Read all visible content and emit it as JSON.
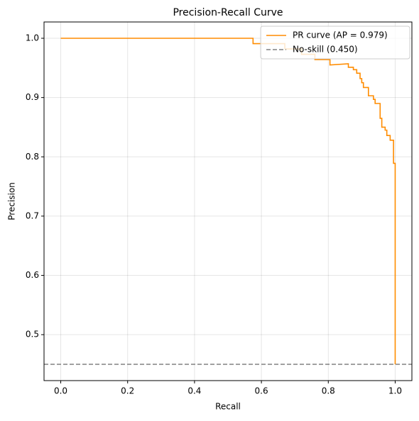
{
  "chart_data": {
    "type": "line",
    "title": "Precision-Recall Curve",
    "xlabel": "Recall",
    "ylabel": "Precision",
    "xlim": [
      -0.05,
      1.05
    ],
    "ylim": [
      0.4225,
      1.0275
    ],
    "xticks": [
      {
        "value": 0,
        "label": "0.0"
      },
      0.2,
      0.4,
      0.6,
      0.8,
      {
        "value": 1,
        "label": "1.0"
      }
    ],
    "yticks": [
      0.5,
      0.6,
      0.7,
      0.8,
      0.9,
      {
        "value": 1,
        "label": "1.0"
      }
    ],
    "grid": true,
    "legend": "upper right",
    "series": [
      {
        "name": "PR curve (AP = 0.979)",
        "color": "#ff8c00",
        "x": [
          0,
          0.575,
          0.575,
          0.67,
          0.67,
          0.72,
          0.72,
          0.76,
          0.76,
          0.805,
          0.805,
          0.86,
          0.86,
          0.875,
          0.875,
          0.885,
          0.885,
          0.895,
          0.895,
          0.9,
          0.9,
          0.905,
          0.905,
          0.92,
          0.92,
          0.935,
          0.935,
          0.94,
          0.94,
          0.955,
          0.955,
          0.96,
          0.96,
          0.97,
          0.97,
          0.975,
          0.975,
          0.985,
          0.985,
          0.995,
          0.995,
          1,
          1
        ],
        "values": [
          1,
          1,
          0.991,
          0.991,
          0.982,
          0.982,
          0.973,
          0.973,
          0.964,
          0.964,
          0.955,
          0.957,
          0.951,
          0.951,
          0.947,
          0.947,
          0.941,
          0.941,
          0.932,
          0.932,
          0.925,
          0.925,
          0.917,
          0.917,
          0.903,
          0.903,
          0.897,
          0.897,
          0.89,
          0.89,
          0.865,
          0.865,
          0.85,
          0.85,
          0.845,
          0.845,
          0.836,
          0.836,
          0.828,
          0.828,
          0.789,
          0.789,
          0.45
        ]
      },
      {
        "name": "No-skill (0.450)",
        "color": "#808080",
        "dashed": true,
        "x": [
          -0.05,
          1.05
        ],
        "values": [
          0.45,
          0.45
        ]
      }
    ]
  }
}
